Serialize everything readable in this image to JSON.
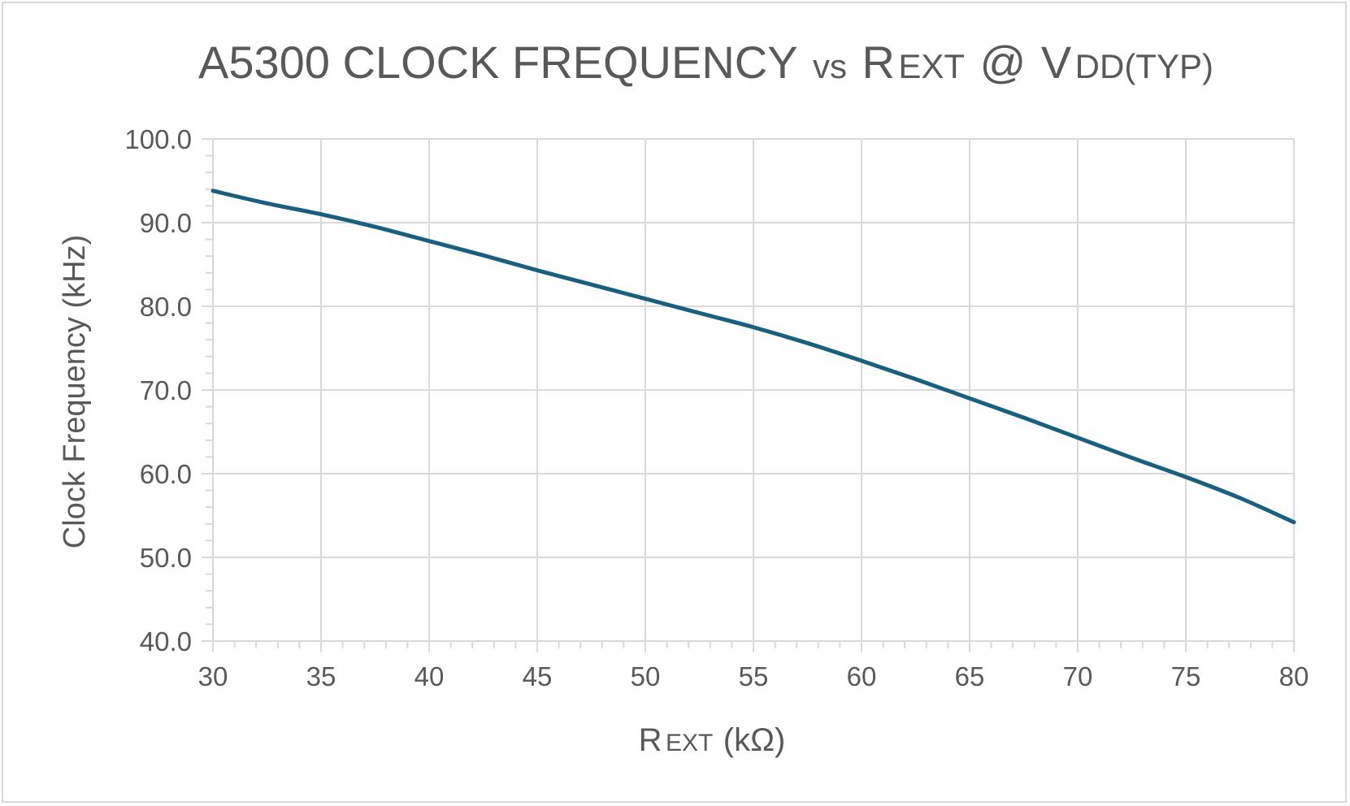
{
  "chart_data": {
    "type": "line",
    "title": {
      "main": "A5300 CLOCK FREQUENCY",
      "vs": "vs",
      "r_cap": "R",
      "r_sub": "EXT",
      "at": "@",
      "v_cap": "V",
      "v_sub": "DD(TYP)"
    },
    "xlabel": {
      "cap": "R",
      "sub": "EXT",
      "unit": "(kΩ)"
    },
    "ylabel": "Clock Frequency (kHz)",
    "xlim": [
      30,
      80
    ],
    "ylim": [
      40,
      100
    ],
    "x_ticks": [
      "30",
      "35",
      "40",
      "45",
      "50",
      "55",
      "60",
      "65",
      "70",
      "75",
      "80"
    ],
    "y_ticks": [
      "40.0",
      "50.0",
      "60.0",
      "70.0",
      "80.0",
      "90.0",
      "100.0"
    ],
    "grid": true,
    "series": [
      {
        "color": "#1a5f80",
        "x": [
          30,
          32.5,
          35,
          37.5,
          40,
          42.5,
          45,
          47.5,
          50,
          52.5,
          55,
          57.5,
          60,
          62.5,
          65,
          67.5,
          70,
          72.5,
          75,
          77.5,
          80
        ],
        "y": [
          93.8,
          92.3,
          91.0,
          89.5,
          87.8,
          86.1,
          84.3,
          82.6,
          80.9,
          79.2,
          77.5,
          75.6,
          73.5,
          71.3,
          69.0,
          66.7,
          64.3,
          61.9,
          59.6,
          57.1,
          54.2
        ]
      }
    ]
  }
}
